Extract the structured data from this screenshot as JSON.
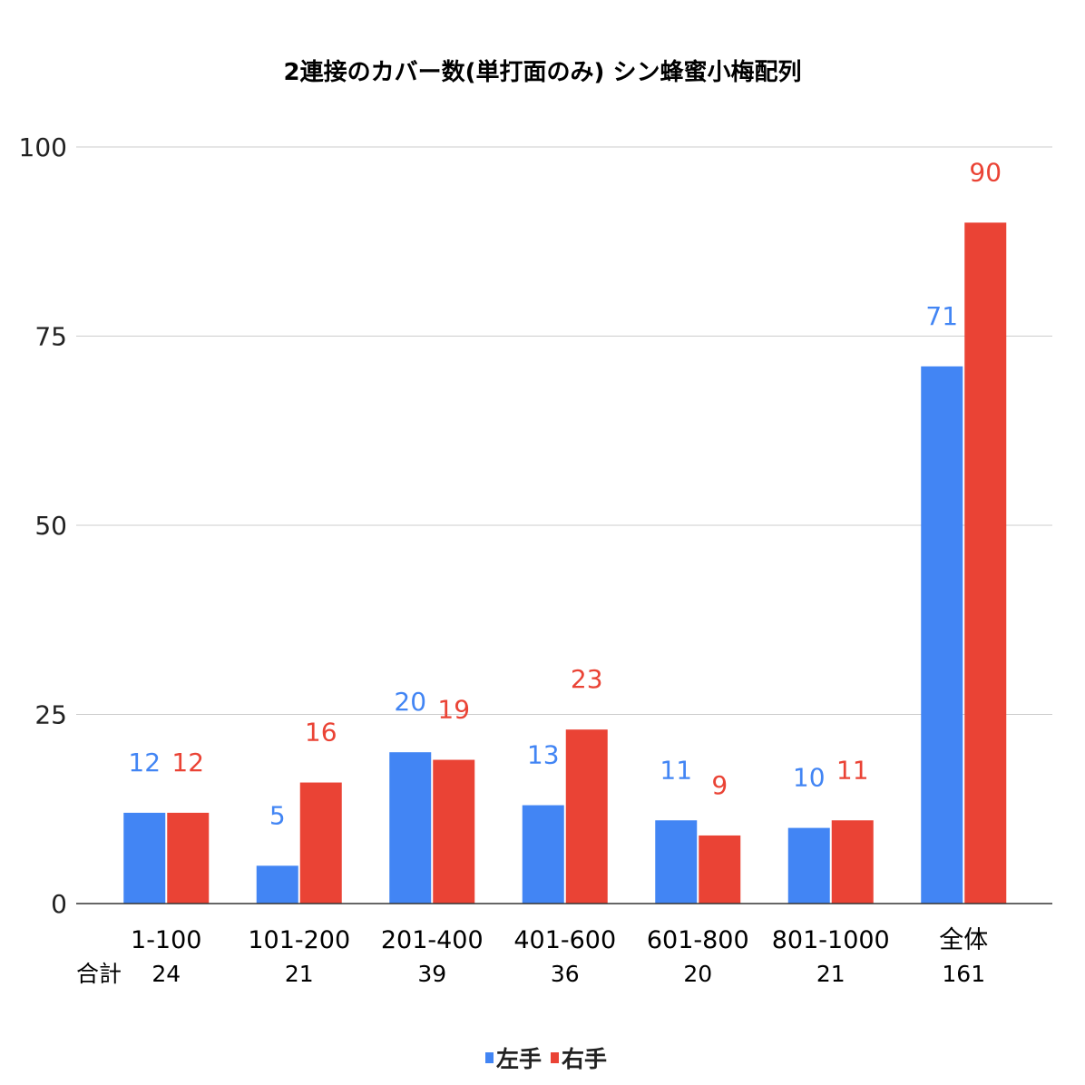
{
  "chart_data": {
    "type": "bar",
    "title": "2連接のカバー数(単打面のみ) シン蜂蜜小梅配列",
    "categories": [
      "1-100",
      "101-200",
      "201-400",
      "401-600",
      "601-800",
      "801-1000",
      "全体"
    ],
    "totals_label": "合計",
    "totals": [
      "24",
      "21",
      "39",
      "36",
      "20",
      "21",
      "161"
    ],
    "series": [
      {
        "name": "左手",
        "values": [
          12,
          5,
          20,
          13,
          11,
          10,
          71
        ],
        "color": "#4285f4"
      },
      {
        "name": "右手",
        "values": [
          12,
          16,
          19,
          23,
          9,
          11,
          90
        ],
        "color": "#ea4335"
      }
    ],
    "ylim": [
      0,
      100
    ],
    "yticks": [
      0,
      25,
      50,
      75,
      100
    ],
    "grid": true,
    "legend_position": "bottom"
  }
}
